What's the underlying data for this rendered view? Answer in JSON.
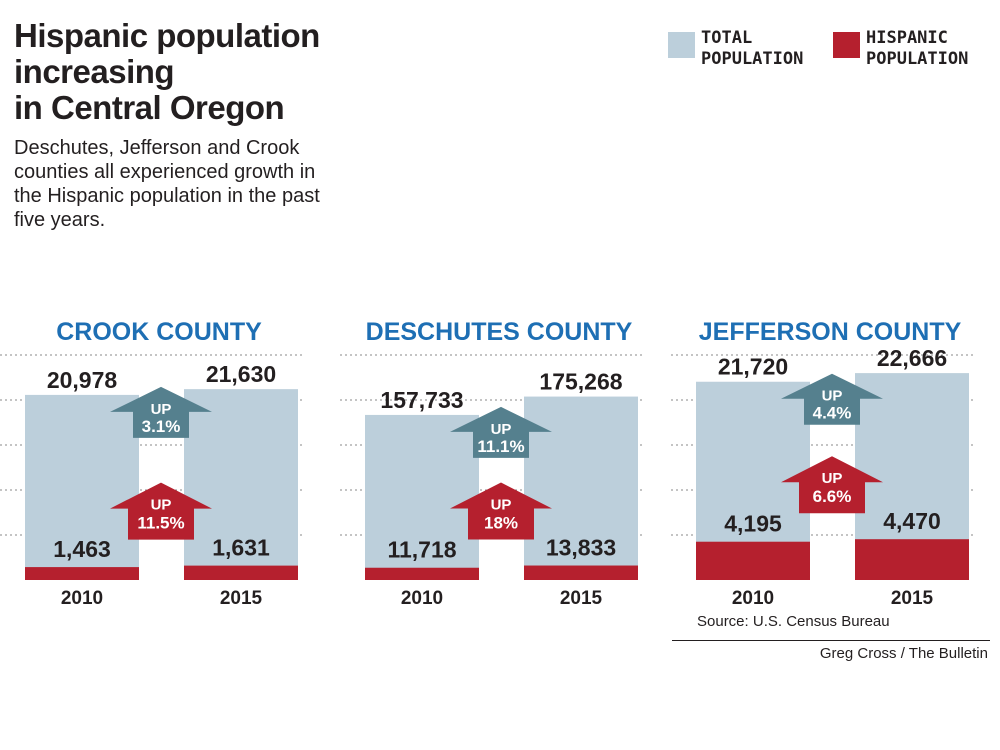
{
  "title": {
    "line1": "Hispanic population",
    "line2": "increasing",
    "line3": "in Central Oregon"
  },
  "subtitle": "Deschutes, Jefferson and Crook counties all experienced growth in the Hispanic population in the past five years.",
  "legend": {
    "total": "TOTAL\nPOPULATION",
    "hispanic": "HISPANIC\nPOPULATION"
  },
  "colors": {
    "total": "#bccfdb",
    "hispanic": "#b5202e",
    "total_arrow": "#55808e",
    "title_blue": "#1e6fb4",
    "grid": "#888888"
  },
  "chart_data": [
    {
      "type": "bar",
      "title": "CROOK COUNTY",
      "categories": [
        "2010",
        "2015"
      ],
      "series": [
        {
          "name": "TOTAL POPULATION",
          "values": [
            20978,
            21630
          ],
          "labels": [
            "20,978",
            "21,630"
          ]
        },
        {
          "name": "HISPANIC POPULATION",
          "values": [
            1463,
            1631
          ],
          "labels": [
            "1,463",
            "1,631"
          ]
        }
      ],
      "change": {
        "total": {
          "word": "UP",
          "pct": "3.1%"
        },
        "hispanic": {
          "word": "UP",
          "pct": "11.5%"
        }
      },
      "ylim": [
        0,
        25500
      ],
      "grid": true
    },
    {
      "type": "bar",
      "title": "DESCHUTES COUNTY",
      "categories": [
        "2010",
        "2015"
      ],
      "series": [
        {
          "name": "TOTAL POPULATION",
          "values": [
            157733,
            175268
          ],
          "labels": [
            "157,733",
            "175,268"
          ]
        },
        {
          "name": "HISPANIC POPULATION",
          "values": [
            11718,
            13833
          ],
          "labels": [
            "11,718",
            "13,833"
          ]
        }
      ],
      "change": {
        "total": {
          "word": "UP",
          "pct": "11.1%"
        },
        "hispanic": {
          "word": "UP",
          "pct": "18%"
        }
      },
      "ylim": [
        0,
        215000
      ],
      "grid": true
    },
    {
      "type": "bar",
      "title": "JEFFERSON COUNTY",
      "categories": [
        "2010",
        "2015"
      ],
      "series": [
        {
          "name": "TOTAL POPULATION",
          "values": [
            21720,
            22666
          ],
          "labels": [
            "21,720",
            "22,666"
          ]
        },
        {
          "name": "HISPANIC POPULATION",
          "values": [
            4195,
            4470
          ],
          "labels": [
            "4,195",
            "4,470"
          ]
        }
      ],
      "change": {
        "total": {
          "word": "UP",
          "pct": "4.4%"
        },
        "hispanic": {
          "word": "UP",
          "pct": "6.6%"
        }
      },
      "ylim": [
        0,
        24650
      ],
      "grid": true
    }
  ],
  "source": "Source: U.S. Census Bureau",
  "credit": "Greg Cross / The Bulletin"
}
